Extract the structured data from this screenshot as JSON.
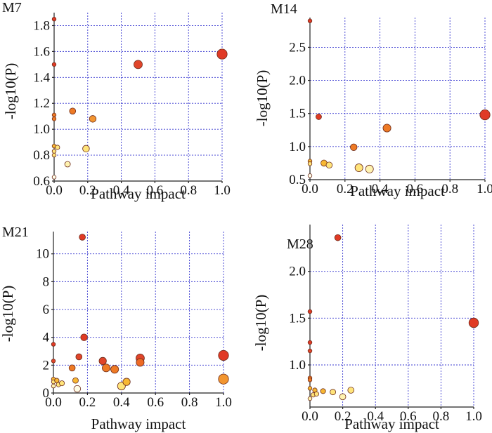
{
  "colors": {
    "grid": "#3a3ad0",
    "axis": "#222222",
    "point_stroke": "#6b2a1a",
    "scale": [
      "#fffde8",
      "#ffe47a",
      "#f7b733",
      "#ee7a25",
      "#e03a25"
    ]
  },
  "chart_data": [
    {
      "type": "scatter",
      "title": "M7",
      "xlabel": "Pathway impact",
      "ylabel": "-log10(P)",
      "xlim": [
        0,
        1
      ],
      "ylim": [
        0.6,
        1.9
      ],
      "xticks": [
        0.0,
        0.2,
        0.4,
        0.6,
        0.8,
        1.0
      ],
      "xtick_labels": [
        "0.0",
        "0.2",
        "0.4",
        "0.6",
        "0.8",
        "1.0"
      ],
      "yticks": [
        0.6,
        0.8,
        1.0,
        1.2,
        1.4,
        1.6,
        1.8
      ],
      "ytick_labels": [
        "0.6",
        "0.8",
        "1.0",
        "1.2",
        "1.4",
        "1.6",
        "1.8"
      ],
      "points": [
        {
          "x": 0.0,
          "y": 1.85,
          "size": 0.1,
          "color": "#e03a25"
        },
        {
          "x": 0.0,
          "y": 1.5,
          "size": 0.1,
          "color": "#e03a25"
        },
        {
          "x": 0.0,
          "y": 1.11,
          "size": 0.1,
          "color": "#ee7a25"
        },
        {
          "x": 0.0,
          "y": 1.08,
          "size": 0.1,
          "color": "#ee7a25"
        },
        {
          "x": 0.0,
          "y": 0.87,
          "size": 0.1,
          "color": "#f7b733"
        },
        {
          "x": 0.0,
          "y": 0.83,
          "size": 0.1,
          "color": "#ffe47a"
        },
        {
          "x": 0.0,
          "y": 0.8,
          "size": 0.1,
          "color": "#ffe47a"
        },
        {
          "x": 0.0,
          "y": 0.63,
          "size": 0.1,
          "color": "#fffde8"
        },
        {
          "x": 0.02,
          "y": 0.86,
          "size": 0.15,
          "color": "#ffe47a"
        },
        {
          "x": 0.08,
          "y": 0.73,
          "size": 0.25,
          "color": "#fff3b0"
        },
        {
          "x": 0.11,
          "y": 1.14,
          "size": 0.3,
          "color": "#ee7a25"
        },
        {
          "x": 0.19,
          "y": 0.85,
          "size": 0.35,
          "color": "#ffe47a"
        },
        {
          "x": 0.23,
          "y": 1.08,
          "size": 0.35,
          "color": "#f29530"
        },
        {
          "x": 0.5,
          "y": 1.5,
          "size": 0.5,
          "color": "#e0452a"
        },
        {
          "x": 1.0,
          "y": 1.58,
          "size": 0.65,
          "color": "#e03a25"
        }
      ]
    },
    {
      "type": "scatter",
      "title": "M14",
      "xlabel": "Pathway impact",
      "ylabel": "-log10(P)",
      "xlim": [
        0,
        1
      ],
      "ylim": [
        0.5,
        2.95
      ],
      "xticks": [
        0.0,
        0.2,
        0.4,
        0.6,
        0.8,
        1.0
      ],
      "xtick_labels": [
        "0.0",
        "0.2",
        "0.4",
        "0.6",
        "0.8",
        "1.0"
      ],
      "yticks": [
        0.5,
        1.0,
        1.5,
        2.0,
        2.5
      ],
      "ytick_labels": [
        "0.5",
        "1.0",
        "1.5",
        "2.0",
        "2.5"
      ],
      "points": [
        {
          "x": 0.0,
          "y": 2.9,
          "size": 0.1,
          "color": "#e03a25"
        },
        {
          "x": 0.0,
          "y": 0.78,
          "size": 0.1,
          "color": "#f7b733"
        },
        {
          "x": 0.0,
          "y": 0.74,
          "size": 0.1,
          "color": "#ffe47a"
        },
        {
          "x": 0.0,
          "y": 0.56,
          "size": 0.1,
          "color": "#fffde8"
        },
        {
          "x": 0.05,
          "y": 1.45,
          "size": 0.25,
          "color": "#e03a25"
        },
        {
          "x": 0.08,
          "y": 0.75,
          "size": 0.3,
          "color": "#f7b733"
        },
        {
          "x": 0.11,
          "y": 0.72,
          "size": 0.3,
          "color": "#ffe47a"
        },
        {
          "x": 0.25,
          "y": 0.99,
          "size": 0.35,
          "color": "#ee7a25"
        },
        {
          "x": 0.28,
          "y": 0.68,
          "size": 0.45,
          "color": "#ffe47a"
        },
        {
          "x": 0.34,
          "y": 0.66,
          "size": 0.45,
          "color": "#fff3b0"
        },
        {
          "x": 0.44,
          "y": 1.28,
          "size": 0.45,
          "color": "#ee7a25"
        },
        {
          "x": 1.0,
          "y": 1.48,
          "size": 0.65,
          "color": "#e03a25"
        }
      ]
    },
    {
      "type": "scatter",
      "title": "M21",
      "xlabel": "Pathway impact",
      "ylabel": "-log10(P)",
      "xlim": [
        0,
        1
      ],
      "ylim": [
        0,
        11.6
      ],
      "xticks": [
        0.0,
        0.2,
        0.4,
        0.6,
        0.8,
        1.0
      ],
      "xtick_labels": [
        "0.0",
        "0.2",
        "0.4",
        "0.6",
        "0.8",
        "1.0"
      ],
      "yticks": [
        0,
        2,
        4,
        6,
        8,
        10
      ],
      "ytick_labels": [
        "0",
        "2",
        "4",
        "6",
        "8",
        "10"
      ],
      "points": [
        {
          "x": 0.0,
          "y": 3.5,
          "size": 0.1,
          "color": "#e03a25"
        },
        {
          "x": 0.0,
          "y": 2.3,
          "size": 0.1,
          "color": "#e0452a"
        },
        {
          "x": 0.0,
          "y": 1.0,
          "size": 0.1,
          "color": "#f7b733"
        },
        {
          "x": 0.0,
          "y": 0.8,
          "size": 0.1,
          "color": "#ffe47a"
        },
        {
          "x": 0.0,
          "y": 0.5,
          "size": 0.1,
          "color": "#fff3b0"
        },
        {
          "x": 0.02,
          "y": 0.9,
          "size": 0.15,
          "color": "#f7b733"
        },
        {
          "x": 0.03,
          "y": 0.6,
          "size": 0.15,
          "color": "#ffe47a"
        },
        {
          "x": 0.05,
          "y": 0.7,
          "size": 0.2,
          "color": "#ffe47a"
        },
        {
          "x": 0.11,
          "y": 1.8,
          "size": 0.3,
          "color": "#ee7a25"
        },
        {
          "x": 0.13,
          "y": 0.9,
          "size": 0.25,
          "color": "#f7b733"
        },
        {
          "x": 0.14,
          "y": 0.3,
          "size": 0.35,
          "color": "#fffde8"
        },
        {
          "x": 0.15,
          "y": 2.6,
          "size": 0.3,
          "color": "#e0452a"
        },
        {
          "x": 0.17,
          "y": 11.2,
          "size": 0.3,
          "color": "#e03a25"
        },
        {
          "x": 0.18,
          "y": 4.0,
          "size": 0.35,
          "color": "#e03a25"
        },
        {
          "x": 0.29,
          "y": 2.3,
          "size": 0.4,
          "color": "#e0452a"
        },
        {
          "x": 0.31,
          "y": 1.8,
          "size": 0.45,
          "color": "#ee7a25"
        },
        {
          "x": 0.36,
          "y": 1.7,
          "size": 0.45,
          "color": "#ee7a25"
        },
        {
          "x": 0.4,
          "y": 0.5,
          "size": 0.45,
          "color": "#ffe47a"
        },
        {
          "x": 0.43,
          "y": 0.8,
          "size": 0.4,
          "color": "#f7b733"
        },
        {
          "x": 0.51,
          "y": 2.5,
          "size": 0.5,
          "color": "#e0452a"
        },
        {
          "x": 0.51,
          "y": 2.2,
          "size": 0.45,
          "color": "#ee6a25"
        },
        {
          "x": 1.0,
          "y": 2.7,
          "size": 0.65,
          "color": "#e03a25"
        },
        {
          "x": 1.0,
          "y": 1.0,
          "size": 0.65,
          "color": "#f29530"
        }
      ]
    },
    {
      "type": "scatter",
      "title": "M28",
      "xlabel": "Pathway impact",
      "ylabel": "-log10(P)",
      "xlim": [
        0,
        1
      ],
      "ylim": [
        0.55,
        2.5
      ],
      "xticks": [
        0.0,
        0.2,
        0.4,
        0.6,
        0.8,
        1.0
      ],
      "xtick_labels": [
        "0.0",
        "0.2",
        "0.4",
        "0.6",
        "0.8",
        "1.0"
      ],
      "yticks": [
        1.0,
        1.5,
        2.0
      ],
      "ytick_labels": [
        "1.0",
        "1.5",
        "2.0"
      ],
      "points": [
        {
          "x": 0.0,
          "y": 1.57,
          "size": 0.1,
          "color": "#e03a25"
        },
        {
          "x": 0.0,
          "y": 1.24,
          "size": 0.1,
          "color": "#e03a25"
        },
        {
          "x": 0.0,
          "y": 1.15,
          "size": 0.1,
          "color": "#e0452a"
        },
        {
          "x": 0.0,
          "y": 0.86,
          "size": 0.1,
          "color": "#ee7a25"
        },
        {
          "x": 0.0,
          "y": 0.84,
          "size": 0.1,
          "color": "#ee7a25"
        },
        {
          "x": 0.0,
          "y": 0.75,
          "size": 0.1,
          "color": "#f7b733"
        },
        {
          "x": 0.0,
          "y": 0.64,
          "size": 0.1,
          "color": "#fff3b0"
        },
        {
          "x": 0.02,
          "y": 0.68,
          "size": 0.15,
          "color": "#ffe47a"
        },
        {
          "x": 0.03,
          "y": 0.73,
          "size": 0.15,
          "color": "#f7b733"
        },
        {
          "x": 0.04,
          "y": 0.69,
          "size": 0.15,
          "color": "#ffe47a"
        },
        {
          "x": 0.08,
          "y": 0.72,
          "size": 0.2,
          "color": "#f7b733"
        },
        {
          "x": 0.14,
          "y": 0.71,
          "size": 0.25,
          "color": "#ffe47a"
        },
        {
          "x": 0.17,
          "y": 2.36,
          "size": 0.3,
          "color": "#e03a25"
        },
        {
          "x": 0.2,
          "y": 0.66,
          "size": 0.3,
          "color": "#fff3b0"
        },
        {
          "x": 0.25,
          "y": 0.73,
          "size": 0.3,
          "color": "#ffe47a"
        },
        {
          "x": 1.0,
          "y": 1.45,
          "size": 0.6,
          "color": "#e03a25"
        }
      ]
    }
  ]
}
